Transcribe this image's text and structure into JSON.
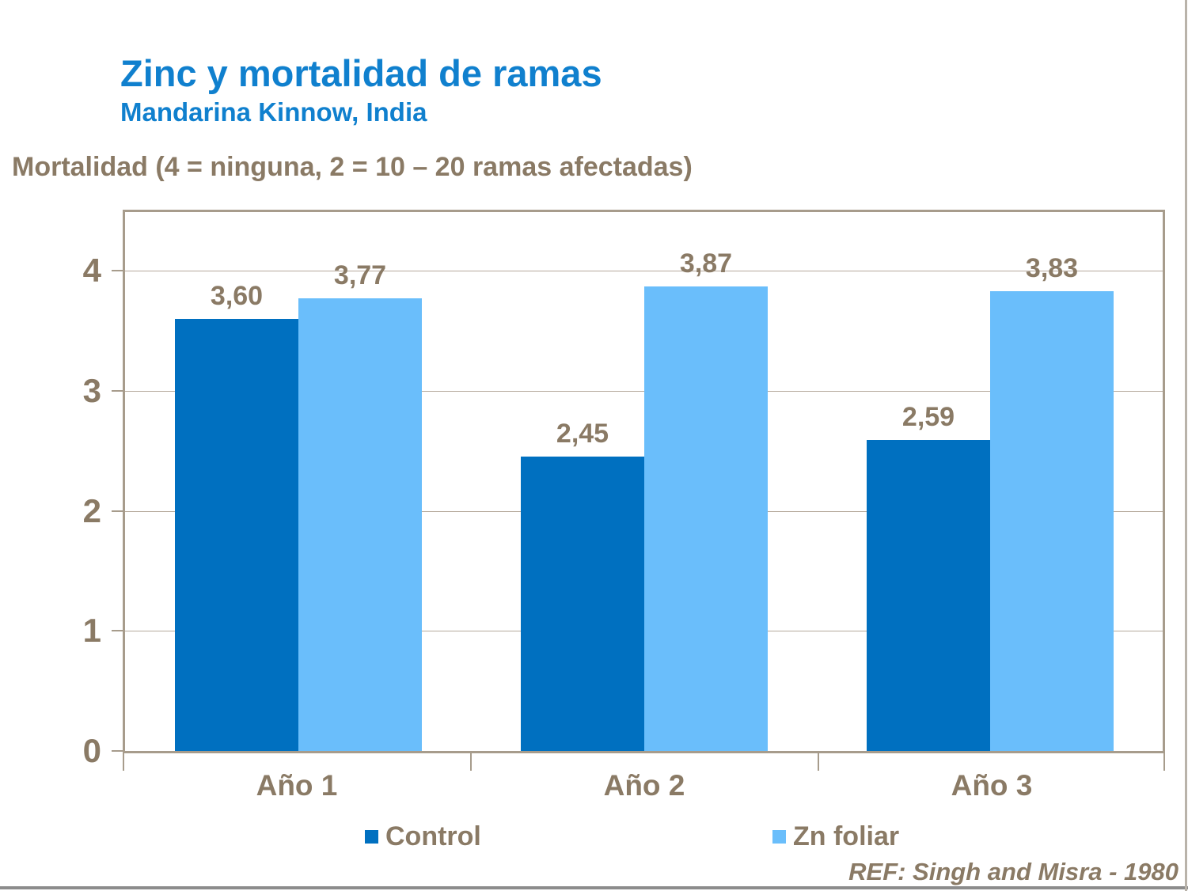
{
  "slide": {
    "title": "Zinc y mortalidad de ramas",
    "subtitle": "Mandarina Kinnow, India",
    "axis_note": "Mortalidad (4 = ninguna, 2 = 10 – 20 ramas afectadas)",
    "reference": "REF: Singh and Misra - 1980"
  },
  "colors": {
    "title_blue": "#1080CE",
    "control_bar": "#0070C0",
    "zn_foliar_bar": "#6ABEFB",
    "text_taupe": "#8A7A65",
    "gridline": "#B5A99B",
    "frame_border": "#A79C8C",
    "bottom_edge": "#8C8C8C"
  },
  "chart_data": {
    "type": "bar",
    "categories": [
      "Año 1",
      "Año 2",
      "Año 3"
    ],
    "series": [
      {
        "name": "Control",
        "color": "#0070C0",
        "values": [
          3.6,
          2.45,
          2.59
        ],
        "labels": [
          "3,60",
          "2,45",
          "2,59"
        ]
      },
      {
        "name": "Zn foliar",
        "color": "#6ABEFB",
        "values": [
          3.77,
          3.87,
          3.83
        ],
        "labels": [
          "3,77",
          "3,87",
          "3,83"
        ]
      }
    ],
    "ylabel": "Mortalidad (4 = ninguna, 2 = 10 – 20 ramas afectadas)",
    "y_ticks": [
      0,
      1,
      2,
      3,
      4
    ],
    "ylim": [
      0,
      4
    ],
    "grid": true,
    "legend_position": "bottom"
  }
}
